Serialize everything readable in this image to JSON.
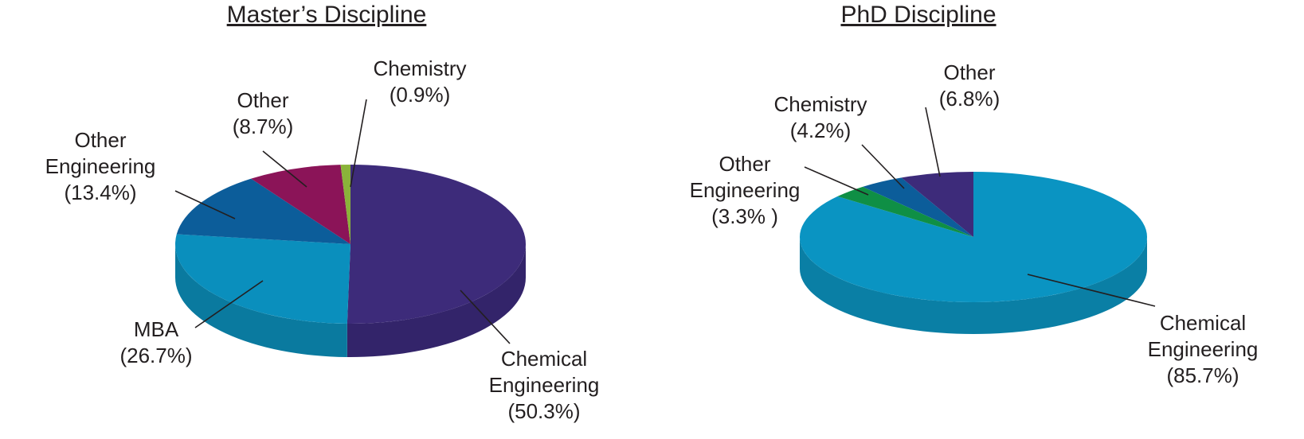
{
  "chart_data": [
    {
      "type": "pie",
      "title": "Master’s Discipline",
      "slices": [
        {
          "name": "Chemical Engineering",
          "value": 50.3,
          "value_text": "(50.3%)",
          "label_lines": [
            "Chemical",
            "Engineering",
            "(50.3%)"
          ],
          "color": "#3d2b7a",
          "side_color": "#33246a"
        },
        {
          "name": "MBA",
          "value": 26.7,
          "value_text": "(26.7%)",
          "label_lines": [
            "MBA",
            "(26.7%)"
          ],
          "color": "#0a8fbd",
          "side_color": "#0a7a9f"
        },
        {
          "name": "Other Engineering",
          "value": 13.4,
          "value_text": "(13.4%)",
          "label_lines": [
            "Other",
            "Engineering",
            "(13.4%)"
          ],
          "color": "#0c5d9a",
          "side_color": "#0a4f83"
        },
        {
          "name": "Other",
          "value": 8.7,
          "value_text": "(8.7%)",
          "label_lines": [
            "Other",
            "(8.7%)"
          ],
          "color": "#8b1458",
          "side_color": "#73104a"
        },
        {
          "name": "Chemistry",
          "value": 0.9,
          "value_text": "(0.9%)",
          "label_lines": [
            "Chemistry",
            "(0.9%)"
          ],
          "color": "#8ab33a",
          "side_color": "#76992f"
        }
      ]
    },
    {
      "type": "pie",
      "title": "PhD Discipline",
      "slices": [
        {
          "name": "Chemical Engineering",
          "value": 85.7,
          "value_text": "(85.7%)",
          "label_lines": [
            "Chemical",
            "Engineering",
            "(85.7%)"
          ],
          "color": "#0a94c2",
          "side_color": "#0a7fa5"
        },
        {
          "name": "Other Engineering",
          "value": 3.3,
          "value_text": "(3.3% )",
          "label_lines": [
            "Other",
            "Engineering",
            "(3.3% )"
          ],
          "color": "#0f8f45",
          "side_color": "#0c7a3a"
        },
        {
          "name": "Chemistry",
          "value": 4.2,
          "value_text": "(4.2%)",
          "label_lines": [
            "Chemistry",
            "(4.2%)"
          ],
          "color": "#0c5d9a",
          "side_color": "#0a4f83"
        },
        {
          "name": "Other",
          "value": 6.8,
          "value_text": "(6.8%)",
          "label_lines": [
            "Other",
            "(6.8%)"
          ],
          "color": "#3d2b7a",
          "side_color": "#33246a"
        }
      ]
    }
  ]
}
